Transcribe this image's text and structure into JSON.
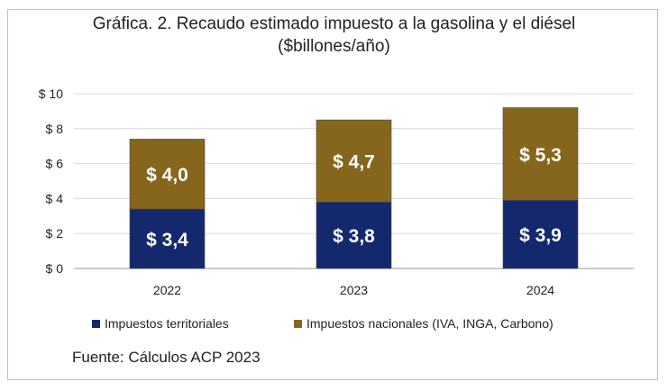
{
  "chart_data": {
    "type": "bar",
    "stacked": true,
    "title": "Gráfica. 2. Recaudo estimado impuesto a la gasolina y el diésel",
    "subtitle": "($billones/año)",
    "categories": [
      "2022",
      "2023",
      "2024"
    ],
    "series": [
      {
        "name": "Impuestos territoriales",
        "values": [
          3.4,
          3.8,
          3.9
        ],
        "labels": [
          "$ 3,4",
          "$ 3,8",
          "$ 3,9"
        ],
        "color": "#14286e"
      },
      {
        "name": "Impuestos nacionales (IVA, INGA, Carbono)",
        "values": [
          4.0,
          4.7,
          5.3
        ],
        "labels": [
          "$ 4,0",
          "$ 4,7",
          "$ 5,3"
        ],
        "color": "#85661c"
      }
    ],
    "yticks": [
      0,
      2,
      4,
      6,
      8,
      10
    ],
    "ytick_labels": [
      "$ 0",
      "$ 2",
      "$ 4",
      "$ 6",
      "$ 8",
      "$ 10"
    ],
    "ylim": [
      0,
      10
    ],
    "grid": true,
    "legend": "bottom",
    "source": "Fuente: Cálculos ACP 2023"
  }
}
